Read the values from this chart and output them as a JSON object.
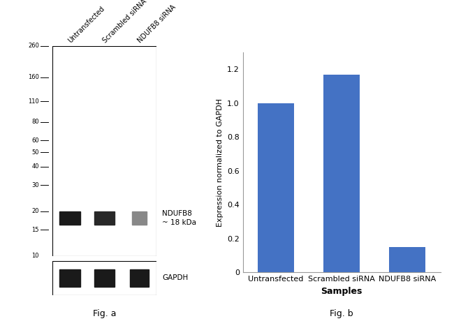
{
  "bar_categories": [
    "Untransfected",
    "Scrambled siRNA",
    "NDUFB8 siRNA"
  ],
  "bar_values": [
    1.0,
    1.17,
    0.15
  ],
  "bar_color": "#4472C4",
  "bar_xlabel": "Samples",
  "bar_ylabel": "Expression normalized to GAPDH",
  "bar_ylim": [
    0,
    1.3
  ],
  "bar_yticks": [
    0,
    0.2,
    0.4,
    0.6,
    0.8,
    1.0,
    1.2
  ],
  "fig_a_label": "Fig. a",
  "fig_b_label": "Fig. b",
  "wb_marker_labels": [
    "260",
    "160",
    "110",
    "80",
    "60",
    "50",
    "40",
    "30",
    "20",
    "15",
    "10"
  ],
  "wb_marker_positions": [
    260,
    160,
    110,
    80,
    60,
    50,
    40,
    30,
    20,
    15,
    10
  ],
  "wb_annotation": "NDUFB8\n~ 18 kDa",
  "wb_annotation2": "GAPDH",
  "wb_sample_labels": [
    "Untransfected",
    "Scrambled siRNA",
    "NDUFB8 siRNA"
  ],
  "background_color": "#ffffff",
  "wb_main_bg": "#e8e8e8",
  "wb_gapdh_bg": "#c8c8c8",
  "ndufb8_band_colors": [
    "#1a1a1a",
    "#282828",
    "#888888"
  ],
  "gapdh_band_color": "#1a1a1a"
}
